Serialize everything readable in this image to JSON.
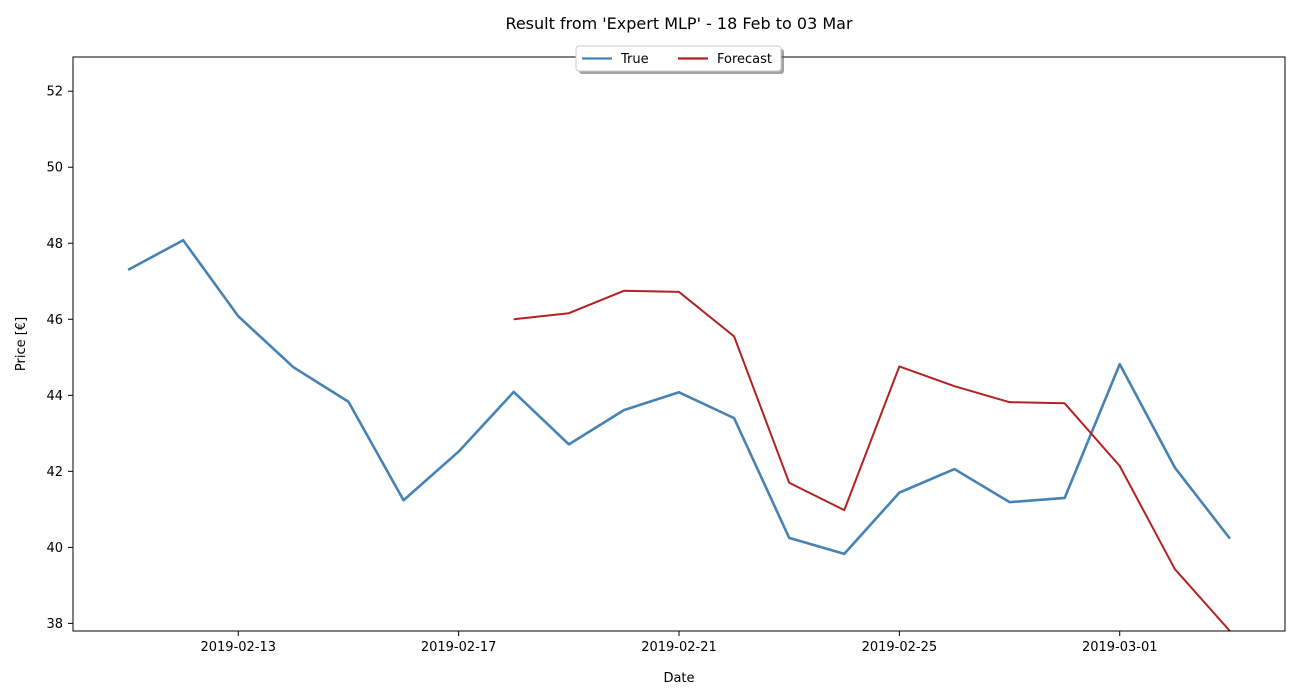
{
  "chart_data": {
    "type": "line",
    "title": "Result from 'Expert MLP' - 18 Feb to 03 Mar",
    "xlabel": "Date",
    "ylabel": "Price [€]",
    "x_tick_labels": [
      "2019-02-13",
      "2019-02-17",
      "2019-02-21",
      "2019-02-25",
      "2019-03-01"
    ],
    "y_tick_labels": [
      "38",
      "40",
      "42",
      "44",
      "46",
      "48",
      "50",
      "52"
    ],
    "x_range": [
      "2019-02-10",
      "2019-03-04"
    ],
    "ylim": [
      37.8,
      52.9
    ],
    "grid": false,
    "legend": {
      "position": "top-center",
      "entries": [
        "True",
        "Forecast"
      ]
    },
    "series": [
      {
        "name": "True",
        "color": "#4682b4",
        "x": [
          "2019-02-11",
          "2019-02-12",
          "2019-02-13",
          "2019-02-14",
          "2019-02-15",
          "2019-02-16",
          "2019-02-17",
          "2019-02-18",
          "2019-02-19",
          "2019-02-20",
          "2019-02-21",
          "2019-02-22",
          "2019-02-23",
          "2019-02-24",
          "2019-02-25",
          "2019-02-26",
          "2019-02-27",
          "2019-02-28",
          "2019-03-01",
          "2019-03-02",
          "2019-03-03"
        ],
        "values": [
          47.3,
          48.08,
          46.08,
          44.74,
          43.83,
          41.24,
          42.52,
          44.09,
          42.71,
          43.61,
          44.08,
          43.4,
          40.25,
          39.83,
          41.44,
          42.06,
          41.19,
          41.3,
          44.82,
          42.1,
          40.23
        ]
      },
      {
        "name": "Forecast",
        "color": "#b22222",
        "x": [
          "2019-02-18",
          "2019-02-19",
          "2019-02-20",
          "2019-02-21",
          "2019-02-22",
          "2019-02-23",
          "2019-02-24",
          "2019-02-25",
          "2019-02-26",
          "2019-02-27",
          "2019-02-28",
          "2019-03-01",
          "2019-03-02",
          "2019-03-03"
        ],
        "values": [
          46.0,
          46.16,
          46.75,
          46.72,
          45.55,
          41.7,
          40.98,
          44.76,
          44.24,
          43.82,
          43.79,
          42.14,
          39.43,
          37.8
        ]
      }
    ]
  }
}
